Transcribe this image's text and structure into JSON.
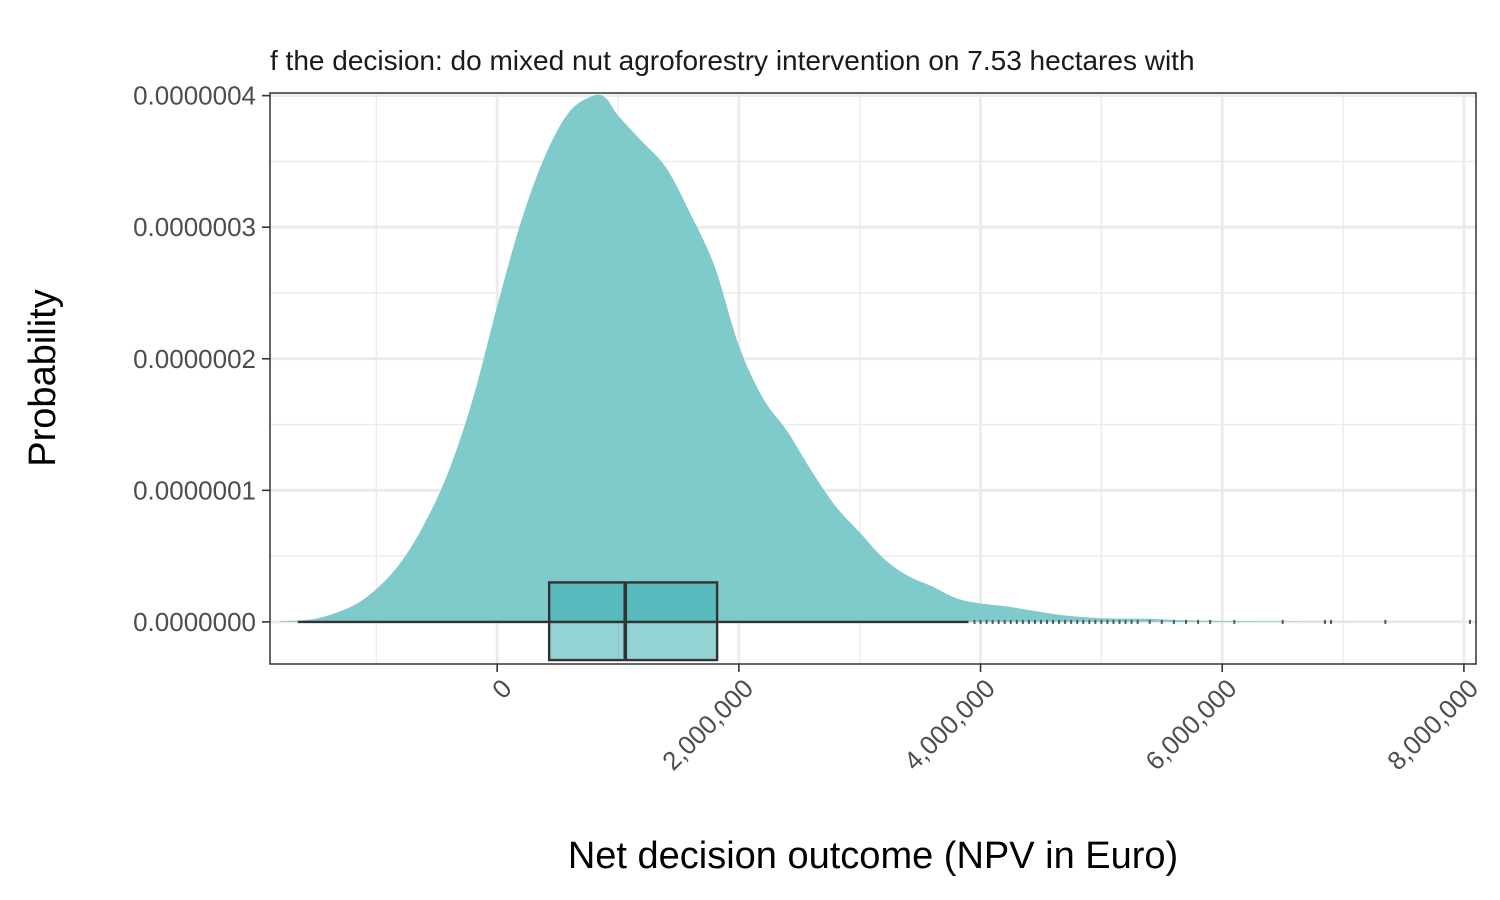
{
  "chart_data": {
    "type": "area",
    "title": "f the decision: do mixed nut agroforestry intervention on 7.53 hectares with",
    "xlabel": "Net decision outcome (NPV in Euro)",
    "ylabel": "Probability",
    "xlim": [
      -1880000,
      8100000
    ],
    "ylim": [
      -3.2e-08,
      4.02e-07
    ],
    "x_ticks": [
      {
        "value": 0,
        "label": "0"
      },
      {
        "value": 2000000,
        "label": "2,000,000"
      },
      {
        "value": 4000000,
        "label": "4,000,000"
      },
      {
        "value": 6000000,
        "label": "6,000,000"
      },
      {
        "value": 8000000,
        "label": "8,000,000"
      }
    ],
    "y_ticks": [
      {
        "value": 0,
        "label": "0.0000000"
      },
      {
        "value": 1e-07,
        "label": "0.0000001"
      },
      {
        "value": 2e-07,
        "label": "0.0000002"
      },
      {
        "value": 3e-07,
        "label": "0.0000003"
      },
      {
        "value": 4e-07,
        "label": "0.0000004"
      }
    ],
    "grid": true,
    "colors": {
      "fill": "#7fcbcc",
      "box_fill": "#3aafb1",
      "box_stroke": "#333333",
      "grid": "#ebebeb",
      "panel_border": "#333333"
    },
    "density": {
      "x": [
        -1800000,
        -1500000,
        -1200000,
        -1000000,
        -800000,
        -600000,
        -400000,
        -200000,
        0,
        200000,
        400000,
        600000,
        800000,
        900000,
        1000000,
        1200000,
        1400000,
        1600000,
        1800000,
        2000000,
        2200000,
        2400000,
        2600000,
        2800000,
        3000000,
        3200000,
        3400000,
        3600000,
        3800000,
        4000000,
        4200000,
        4400000,
        4600000,
        4800000,
        5000000,
        5200000,
        5400000,
        5600000,
        5800000,
        6000000,
        6500000,
        7000000,
        7500000,
        8000000,
        8100000
      ],
      "y": [
        5e-10,
        2.5e-09,
        1.2e-08,
        2.5e-08,
        4.5e-08,
        7.5e-08,
        1.15e-07,
        1.7e-07,
        2.4e-07,
        3.05e-07,
        3.55e-07,
        3.88e-07,
        4e-07,
        3.98e-07,
        3.85e-07,
        3.65e-07,
        3.45e-07,
        3.1e-07,
        2.7e-07,
        2.1e-07,
        1.7e-07,
        1.45e-07,
        1.15e-07,
        8.8e-08,
        6.8e-08,
        4.8e-08,
        3.5e-08,
        2.7e-08,
        1.8e-08,
        1.4e-08,
        1.2e-08,
        9e-09,
        6e-09,
        4e-09,
        2.8e-09,
        2.5e-09,
        2.3e-09,
        1.5e-09,
        1e-09,
        8e-10,
        4e-10,
        2e-10,
        1e-10,
        5e-11,
        0
      ]
    },
    "boxplot": {
      "whisker_low": -1650000,
      "q1": 430000,
      "median": 1060000,
      "q3": 1820000,
      "whisker_high": 3900000,
      "height_range": [
        -2.9e-08,
        3e-08
      ],
      "outliers": [
        3950000,
        4000000,
        4050000,
        4100000,
        4150000,
        4200000,
        4250000,
        4300000,
        4350000,
        4400000,
        4450000,
        4500000,
        4550000,
        4600000,
        4650000,
        4700000,
        4750000,
        4800000,
        4850000,
        4900000,
        4950000,
        5000000,
        5050000,
        5100000,
        5150000,
        5200000,
        5250000,
        5300000,
        5400000,
        5500000,
        5600000,
        5700000,
        5800000,
        5900000,
        6100000,
        6500000,
        6850000,
        6900000,
        7350000,
        8050000
      ]
    }
  }
}
